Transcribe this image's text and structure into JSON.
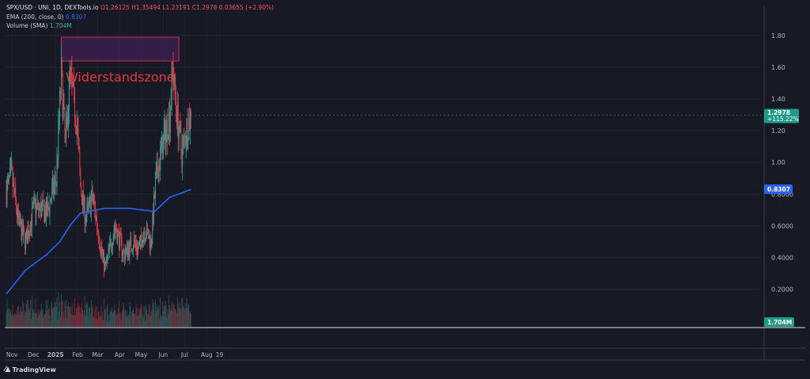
{
  "legend": {
    "symbol": "SPX/USD · UNI, 1D, DEXTools.io",
    "ohlc": "O1.26125 H1.35494 L1.23191 C1.2978 0.03655 (+2.90%)",
    "ema": "EMA (200, close, 0)",
    "ema_value": "0.8307",
    "volume": "Volume (SMA)",
    "volume_value": "1.704M"
  },
  "branding": {
    "name": "TradingView"
  },
  "colors": {
    "background": "#171a24",
    "up": "#26a69a",
    "down": "#f23645",
    "ema": "#2962ff",
    "zone_fill": "#3b1f4d",
    "zone_border": "#d12d5c",
    "zone_text": "#e03a3a"
  },
  "chart_data": {
    "type": "candlestick",
    "annotation": {
      "label": "Widerstandszone",
      "y_range": [
        1.64,
        1.79
      ],
      "x_range": [
        "2025-01-09",
        "2025-06-23"
      ]
    },
    "y_ticks": [
      "1.80",
      "1.60",
      "1.40",
      "1.20",
      "1.00",
      "0.8000",
      "0.6000",
      "0.4000",
      "0.2000"
    ],
    "x_ticks": [
      "Nov",
      "Dec",
      "2025",
      "Feb",
      "Mar",
      "Apr",
      "May",
      "Jun",
      "Jul",
      "Aug",
      "19"
    ],
    "price_label": {
      "value": "1.2978",
      "change": "+115.22%"
    },
    "ema_label": "0.8307",
    "volume_label": "1.704M",
    "last_price": 1.2978,
    "ylim": [
      0.0,
      1.9
    ],
    "key_points": [
      {
        "date": "2024-10-24",
        "close": 0.82
      },
      {
        "date": "2024-10-31",
        "close": 0.92
      },
      {
        "date": "2024-11-10",
        "close": 0.62
      },
      {
        "date": "2024-11-20",
        "close": 0.5
      },
      {
        "date": "2024-12-02",
        "close": 0.72
      },
      {
        "date": "2024-12-20",
        "close": 0.68
      },
      {
        "date": "2025-01-02",
        "close": 0.9
      },
      {
        "date": "2025-01-09",
        "close": 1.55
      },
      {
        "date": "2025-01-15",
        "close": 1.1
      },
      {
        "date": "2025-01-21",
        "close": 1.55
      },
      {
        "date": "2025-01-31",
        "close": 1.25
      },
      {
        "date": "2025-02-05",
        "close": 0.85
      },
      {
        "date": "2025-02-12",
        "close": 0.65
      },
      {
        "date": "2025-02-22",
        "close": 0.78
      },
      {
        "date": "2025-03-08",
        "close": 0.4
      },
      {
        "date": "2025-03-12",
        "close": 0.33
      },
      {
        "date": "2025-03-25",
        "close": 0.6
      },
      {
        "date": "2025-04-07",
        "close": 0.42
      },
      {
        "date": "2025-04-20",
        "close": 0.5
      },
      {
        "date": "2025-04-28",
        "close": 0.45
      },
      {
        "date": "2025-05-05",
        "close": 0.58
      },
      {
        "date": "2025-05-15",
        "close": 0.5
      },
      {
        "date": "2025-05-22",
        "close": 0.9
      },
      {
        "date": "2025-06-02",
        "close": 1.15
      },
      {
        "date": "2025-06-10",
        "close": 1.3
      },
      {
        "date": "2025-06-14",
        "close": 1.6
      },
      {
        "date": "2025-06-20",
        "close": 1.32
      },
      {
        "date": "2025-06-27",
        "close": 1.05
      },
      {
        "date": "2025-07-04",
        "close": 1.22
      },
      {
        "date": "2025-07-10",
        "close": 1.2978
      }
    ],
    "ema_points": [
      {
        "date": "2024-10-24",
        "value": 0.17
      },
      {
        "date": "2024-11-20",
        "value": 0.32
      },
      {
        "date": "2024-12-20",
        "value": 0.42
      },
      {
        "date": "2025-01-07",
        "value": 0.5
      },
      {
        "date": "2025-01-21",
        "value": 0.6
      },
      {
        "date": "2025-02-05",
        "value": 0.68
      },
      {
        "date": "2025-03-10",
        "value": 0.71
      },
      {
        "date": "2025-04-15",
        "value": 0.71
      },
      {
        "date": "2025-05-20",
        "value": 0.69
      },
      {
        "date": "2025-06-10",
        "value": 0.78
      },
      {
        "date": "2025-06-23",
        "value": 0.8
      },
      {
        "date": "2025-07-10",
        "value": 0.8307
      }
    ]
  }
}
